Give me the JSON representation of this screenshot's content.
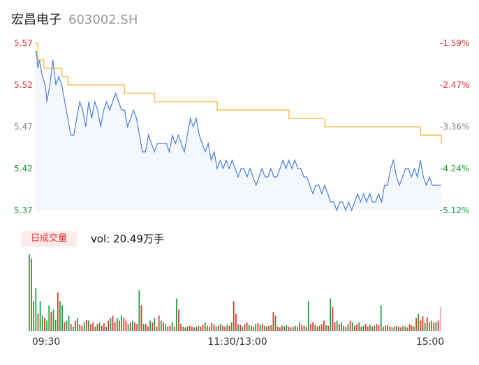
{
  "header": {
    "name": "宏昌电子",
    "code": "603002.SH"
  },
  "volume_panel": {
    "tag": "日成交量",
    "vol_text": "vol: 20.49万手"
  },
  "colors": {
    "up": "#e8312f",
    "down": "#1a9e3c",
    "price_line": "#4a7fe0",
    "avg_line": "#f5b335",
    "flat": "#888888"
  },
  "chart_data": [
    {
      "type": "line",
      "ylim": [
        5.37,
        5.57
      ],
      "y_ticks": [
        "5.57",
        "5.52",
        "5.47",
        "5.42",
        "5.37"
      ],
      "y_tick_colors": [
        "up",
        "up",
        "flat",
        "down",
        "down"
      ],
      "pct_ticks": [
        "-1.59%",
        "-2.47%",
        "-3.36%",
        "-4.24%",
        "-5.12%"
      ],
      "pct_tick_colors": [
        "up",
        "up",
        "flat",
        "down",
        "down"
      ],
      "x_ticks": [
        "09:30",
        "11:30/13:00",
        "15:00"
      ],
      "series": [
        {
          "key": "price",
          "points": [
            [
              0,
              5.56
            ],
            [
              1,
              5.56
            ],
            [
              2,
              5.54
            ],
            [
              3,
              5.55
            ],
            [
              5,
              5.53
            ],
            [
              7,
              5.52
            ],
            [
              8,
              5.5
            ],
            [
              10,
              5.52
            ],
            [
              12,
              5.55
            ],
            [
              14,
              5.52
            ],
            [
              16,
              5.53
            ],
            [
              18,
              5.52
            ],
            [
              20,
              5.5
            ],
            [
              22,
              5.48
            ],
            [
              24,
              5.46
            ],
            [
              26,
              5.46
            ],
            [
              28,
              5.48
            ],
            [
              30,
              5.5
            ],
            [
              32,
              5.49
            ],
            [
              34,
              5.47
            ],
            [
              36,
              5.5
            ],
            [
              38,
              5.48
            ],
            [
              40,
              5.5
            ],
            [
              42,
              5.49
            ],
            [
              44,
              5.47
            ],
            [
              46,
              5.49
            ],
            [
              48,
              5.5
            ],
            [
              50,
              5.49
            ],
            [
              52,
              5.5
            ],
            [
              54,
              5.51
            ],
            [
              56,
              5.5
            ],
            [
              58,
              5.49
            ],
            [
              60,
              5.49
            ],
            [
              62,
              5.47
            ],
            [
              64,
              5.48
            ],
            [
              66,
              5.49
            ],
            [
              68,
              5.48
            ],
            [
              70,
              5.46
            ],
            [
              72,
              5.44
            ],
            [
              74,
              5.44
            ],
            [
              76,
              5.46
            ],
            [
              78,
              5.45
            ],
            [
              80,
              5.44
            ],
            [
              82,
              5.45
            ],
            [
              84,
              5.45
            ],
            [
              86,
              5.45
            ],
            [
              88,
              5.45
            ],
            [
              90,
              5.44
            ],
            [
              92,
              5.46
            ],
            [
              94,
              5.45
            ],
            [
              96,
              5.46
            ],
            [
              98,
              5.45
            ],
            [
              100,
              5.44
            ],
            [
              102,
              5.46
            ],
            [
              104,
              5.48
            ],
            [
              106,
              5.47
            ],
            [
              108,
              5.48
            ],
            [
              110,
              5.46
            ],
            [
              112,
              5.45
            ],
            [
              114,
              5.44
            ],
            [
              116,
              5.45
            ],
            [
              118,
              5.43
            ],
            [
              120,
              5.44
            ],
            [
              122,
              5.42
            ],
            [
              124,
              5.43
            ],
            [
              126,
              5.42
            ],
            [
              128,
              5.43
            ],
            [
              130,
              5.42
            ],
            [
              132,
              5.43
            ],
            [
              134,
              5.42
            ],
            [
              136,
              5.41
            ],
            [
              138,
              5.42
            ],
            [
              140,
              5.42
            ],
            [
              142,
              5.41
            ],
            [
              144,
              5.42
            ],
            [
              146,
              5.41
            ],
            [
              148,
              5.4
            ],
            [
              150,
              5.41
            ],
            [
              152,
              5.42
            ],
            [
              154,
              5.41
            ],
            [
              156,
              5.41
            ],
            [
              158,
              5.42
            ],
            [
              160,
              5.41
            ],
            [
              162,
              5.41
            ],
            [
              164,
              5.42
            ],
            [
              166,
              5.43
            ],
            [
              168,
              5.42
            ],
            [
              170,
              5.43
            ],
            [
              172,
              5.42
            ],
            [
              174,
              5.43
            ],
            [
              176,
              5.42
            ],
            [
              178,
              5.42
            ],
            [
              180,
              5.41
            ],
            [
              182,
              5.41
            ],
            [
              184,
              5.4
            ],
            [
              186,
              5.39
            ],
            [
              188,
              5.4
            ],
            [
              190,
              5.4
            ],
            [
              192,
              5.39
            ],
            [
              194,
              5.4
            ],
            [
              196,
              5.39
            ],
            [
              198,
              5.38
            ],
            [
              200,
              5.38
            ],
            [
              202,
              5.37
            ],
            [
              204,
              5.38
            ],
            [
              206,
              5.38
            ],
            [
              208,
              5.37
            ],
            [
              210,
              5.38
            ],
            [
              212,
              5.37
            ],
            [
              214,
              5.38
            ],
            [
              216,
              5.39
            ],
            [
              218,
              5.38
            ],
            [
              220,
              5.39
            ],
            [
              222,
              5.38
            ],
            [
              224,
              5.39
            ],
            [
              226,
              5.38
            ],
            [
              228,
              5.38
            ],
            [
              230,
              5.39
            ],
            [
              232,
              5.38
            ],
            [
              234,
              5.4
            ],
            [
              236,
              5.4
            ],
            [
              238,
              5.42
            ],
            [
              240,
              5.43
            ],
            [
              242,
              5.41
            ],
            [
              244,
              5.4
            ],
            [
              246,
              5.41
            ],
            [
              248,
              5.42
            ],
            [
              250,
              5.42
            ],
            [
              252,
              5.41
            ],
            [
              254,
              5.42
            ],
            [
              256,
              5.41
            ],
            [
              258,
              5.43
            ],
            [
              260,
              5.41
            ],
            [
              262,
              5.4
            ],
            [
              264,
              5.41
            ],
            [
              266,
              5.4
            ],
            [
              268,
              5.4
            ],
            [
              270,
              5.4
            ],
            [
              272,
              5.4
            ]
          ]
        },
        {
          "key": "avg",
          "points": [
            [
              0,
              5.57
            ],
            [
              2,
              5.55
            ],
            [
              6,
              5.54
            ],
            [
              18,
              5.53
            ],
            [
              22,
              5.52
            ],
            [
              60,
              5.51
            ],
            [
              80,
              5.5
            ],
            [
              122,
              5.49
            ],
            [
              170,
              5.48
            ],
            [
              194,
              5.47
            ],
            [
              258,
              5.46
            ],
            [
              272,
              5.45
            ]
          ]
        }
      ]
    },
    {
      "type": "bar",
      "values": [
        0.9,
        0.85,
        0.35,
        0.5,
        0.2,
        0.35,
        0.18,
        0.15,
        0.12,
        0.3,
        0.22,
        0.25,
        0.13,
        0.45,
        0.35,
        0.3,
        0.1,
        0.12,
        0.18,
        0.08,
        0.05,
        0.12,
        0.15,
        0.08,
        0.06,
        0.1,
        0.13,
        0.12,
        0.08,
        0.1,
        0.05,
        0.08,
        0.1,
        0.06,
        0.09,
        0.05,
        0.12,
        0.15,
        0.18,
        0.1,
        0.15,
        0.12,
        0.18,
        0.15,
        0.12,
        0.08,
        0.1,
        0.12,
        0.1,
        0.08,
        0.48,
        0.3,
        0.08,
        0.08,
        0.05,
        0.12,
        0.1,
        0.15,
        0.05,
        0.18,
        0.12,
        0.1,
        0.08,
        0.05,
        0.06,
        0.1,
        0.05,
        0.38,
        0.25,
        0.08,
        0.05,
        0.04,
        0.05,
        0.06,
        0.05,
        0.04,
        0.05,
        0.06,
        0.05,
        0.07,
        0.1,
        0.06,
        0.05,
        0.09,
        0.07,
        0.05,
        0.06,
        0.08,
        0.06,
        0.05,
        0.07,
        0.06,
        0.1,
        0.35,
        0.2,
        0.08,
        0.07,
        0.05,
        0.08,
        0.1,
        0.07,
        0.06,
        0.05,
        0.08,
        0.09,
        0.07,
        0.08,
        0.06,
        0.05,
        0.06,
        0.07,
        0.22,
        0.18,
        0.05,
        0.04,
        0.06,
        0.05,
        0.07,
        0.05,
        0.04,
        0.05,
        0.06,
        0.05,
        0.1,
        0.07,
        0.06,
        0.05,
        0.35,
        0.08,
        0.1,
        0.07,
        0.05,
        0.06,
        0.08,
        0.12,
        0.07,
        0.06,
        0.38,
        0.28,
        0.1,
        0.12,
        0.08,
        0.1,
        0.06,
        0.05,
        0.08,
        0.12,
        0.1,
        0.06,
        0.08,
        0.1,
        0.05,
        0.06,
        0.08,
        0.05,
        0.07,
        0.05,
        0.06,
        0.08,
        0.07,
        0.3,
        0.05,
        0.06,
        0.07,
        0.05,
        0.04,
        0.05,
        0.06,
        0.05,
        0.04,
        0.06,
        0.05,
        0.04,
        0.08,
        0.06,
        0.05,
        0.15,
        0.2,
        0.12,
        0.17,
        0.1,
        0.16,
        0.1,
        0.12,
        0.1,
        0.1,
        0.12,
        0.28
      ],
      "colors_key": "mixed"
    }
  ]
}
